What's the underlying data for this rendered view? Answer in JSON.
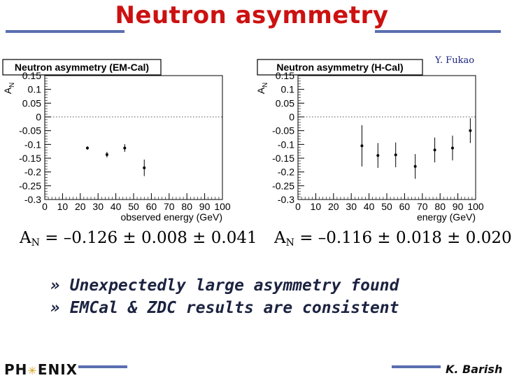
{
  "slide": {
    "title": "Neutron asymmetry",
    "credit": "Y. Fukao",
    "presenter": "K. Barish",
    "logo": {
      "left": "PH",
      "right": "ENIX",
      "mark": "✳"
    },
    "bullets": [
      "» Unexpectedly large asymmetry found",
      "» EMCal & ZDC results are consistent"
    ]
  },
  "colors": {
    "title": "#cc1111",
    "rule": "#5a6fb0",
    "credit": "#1a237e",
    "bullets": "#1c2340"
  },
  "chart_data": [
    {
      "type": "scatter",
      "title": "Neutron asymmetry (EM-Cal)",
      "xlabel": "observed energy (GeV)",
      "ylabel": "A_N",
      "xlim": [
        0,
        100
      ],
      "ylim": [
        -0.3,
        0.15
      ],
      "xticks": [
        "0",
        "10",
        "20",
        "30",
        "40",
        "50",
        "60",
        "70",
        "80",
        "90",
        "100"
      ],
      "yticks": [
        "0.15",
        "0.1",
        "0.05",
        "0",
        "-0.05",
        "-0.1",
        "-0.15",
        "-0.2",
        "-0.25",
        "-0.3"
      ],
      "zero_line": "dotted",
      "grid": false,
      "points": [
        {
          "x": 24,
          "y": -0.113,
          "err": 0.006
        },
        {
          "x": 35,
          "y": -0.137,
          "err": 0.01
        },
        {
          "x": 45,
          "y": -0.113,
          "err": 0.014
        },
        {
          "x": 56,
          "y": -0.185,
          "err": 0.03
        }
      ],
      "result": {
        "symbol": "A",
        "sub": "N",
        "text": "= –0.126 ± 0.008 ± 0.041"
      }
    },
    {
      "type": "scatter",
      "title": "Neutron asymmetry (H-Cal)",
      "xlabel": "energy (GeV)",
      "ylabel": "A_N",
      "xlim": [
        0,
        100
      ],
      "ylim": [
        -0.3,
        0.15
      ],
      "xticks": [
        "0",
        "10",
        "20",
        "30",
        "40",
        "50",
        "60",
        "70",
        "80",
        "90",
        "100"
      ],
      "yticks": [
        "0.15",
        "0.1",
        "0.05",
        "0",
        "-0.05",
        "-0.1",
        "-0.15",
        "-0.2",
        "-0.25",
        "-0.3"
      ],
      "zero_line": "dotted",
      "grid": false,
      "points": [
        {
          "x": 36,
          "y": -0.105,
          "err": 0.075
        },
        {
          "x": 45,
          "y": -0.14,
          "err": 0.045
        },
        {
          "x": 55,
          "y": -0.138,
          "err": 0.045
        },
        {
          "x": 66,
          "y": -0.18,
          "err": 0.045
        },
        {
          "x": 77,
          "y": -0.12,
          "err": 0.045
        },
        {
          "x": 87,
          "y": -0.113,
          "err": 0.045
        },
        {
          "x": 97,
          "y": -0.05,
          "err": 0.045
        }
      ],
      "result": {
        "symbol": "A",
        "sub": "N",
        "text": "= –0.116 ± 0.018 ± 0.020"
      }
    }
  ]
}
